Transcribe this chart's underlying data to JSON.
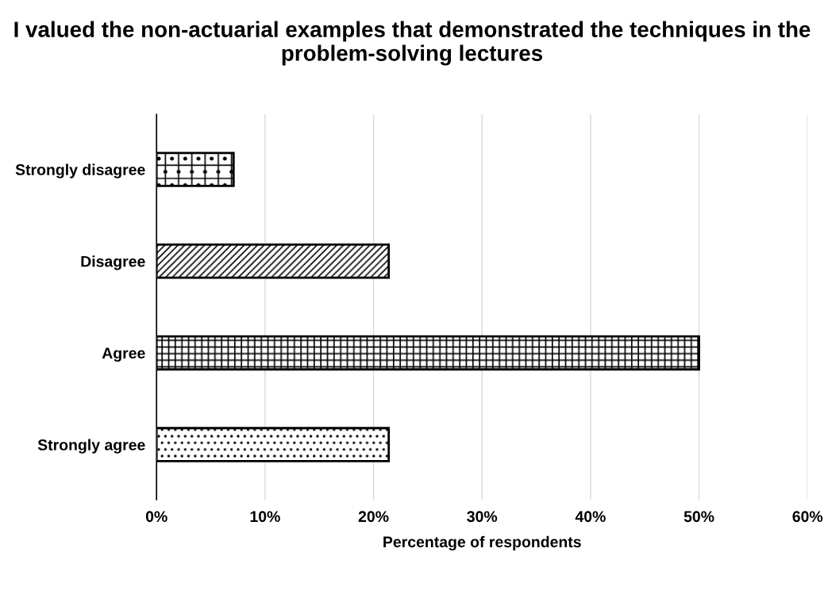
{
  "chart_data": {
    "type": "bar",
    "orientation": "horizontal",
    "title": "I valued the non-actuarial examples that demonstrated the techniques in the problem-solving lectures",
    "xlabel": "Percentage of respondents",
    "categories": [
      "Strongly disagree",
      "Disagree",
      "Agree",
      "Strongly agree"
    ],
    "values": [
      7.1,
      21.4,
      50,
      21.4
    ],
    "color": "#000000",
    "xlim": [
      0,
      60
    ],
    "xticks": [
      {
        "value": 0,
        "label": "0%"
      },
      {
        "value": 10,
        "label": "10%"
      },
      {
        "value": 20,
        "label": "20%"
      },
      {
        "value": 30,
        "label": "30%"
      },
      {
        "value": 40,
        "label": "40%"
      },
      {
        "value": 50,
        "label": "50%"
      },
      {
        "value": 60,
        "label": "60%"
      }
    ],
    "grid": "x",
    "legend": false
  }
}
